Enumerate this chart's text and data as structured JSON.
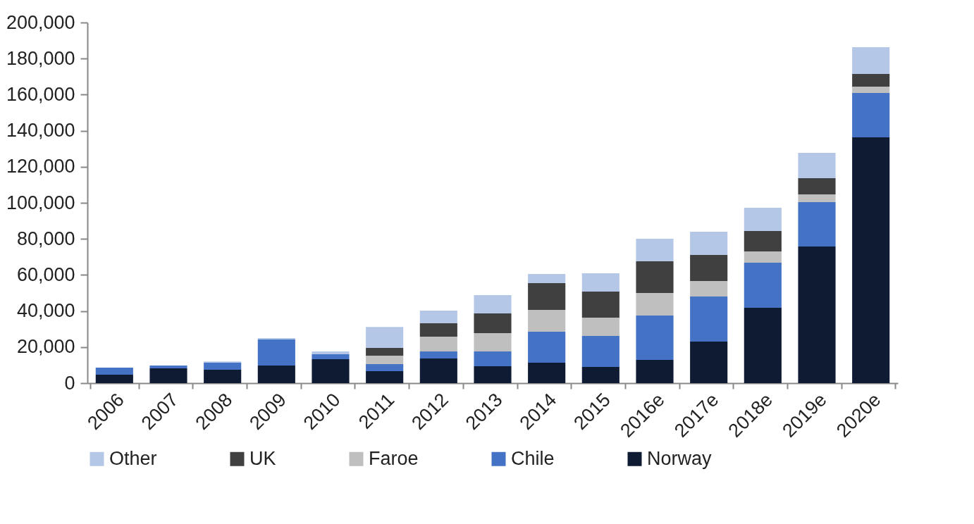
{
  "chart_data": {
    "type": "bar",
    "stacked": true,
    "categories": [
      "2006",
      "2007",
      "2008",
      "2009",
      "2010",
      "2011",
      "2012",
      "2013",
      "2014",
      "2015",
      "2016e",
      "2017e",
      "2018e",
      "2019e",
      "2020e"
    ],
    "series": [
      {
        "name": "Norway",
        "color": "#0f1a33",
        "values": [
          4700,
          8200,
          7400,
          9800,
          13300,
          6600,
          13700,
          9400,
          11300,
          9000,
          12900,
          23000,
          41800,
          75800,
          136300
        ]
      },
      {
        "name": "Chile",
        "color": "#4472c4",
        "values": [
          3900,
          1600,
          3900,
          14400,
          2700,
          3900,
          3900,
          8200,
          17200,
          17200,
          24600,
          25000,
          25000,
          24600,
          24600
        ]
      },
      {
        "name": "Faroe",
        "color": "#bfbfbf",
        "values": [
          null,
          null,
          null,
          null,
          null,
          4700,
          8200,
          10100,
          12100,
          10100,
          12500,
          8600,
          6200,
          4300,
          3600
        ]
      },
      {
        "name": "UK",
        "color": "#404040",
        "values": [
          null,
          null,
          null,
          null,
          null,
          4300,
          7400,
          11000,
          14900,
          14500,
          17600,
          14500,
          11400,
          9000,
          7000
        ]
      },
      {
        "name": "Other",
        "color": "#b4c7e7",
        "values": [
          null,
          null,
          700,
          800,
          1600,
          11700,
          7000,
          10100,
          5000,
          10100,
          12500,
          12900,
          12900,
          14000,
          14800
        ]
      }
    ],
    "ylim": [
      0,
      200000
    ],
    "yticks": [
      0,
      {
        "value": 20000,
        "label": "20,000"
      },
      {
        "value": 40000,
        "label": "40,000"
      },
      {
        "value": 60000,
        "label": "60,000"
      },
      {
        "value": 80000,
        "label": "80,000"
      },
      {
        "value": 100000,
        "label": "100,000"
      },
      {
        "value": 120000,
        "label": "120,000"
      },
      {
        "value": 140000,
        "label": "140,000"
      },
      {
        "value": 160000,
        "label": "160,000"
      },
      {
        "value": 180000,
        "label": "180,000"
      },
      {
        "value": 200000,
        "label": "200,000"
      }
    ],
    "grid": false,
    "legend": "bottom"
  }
}
